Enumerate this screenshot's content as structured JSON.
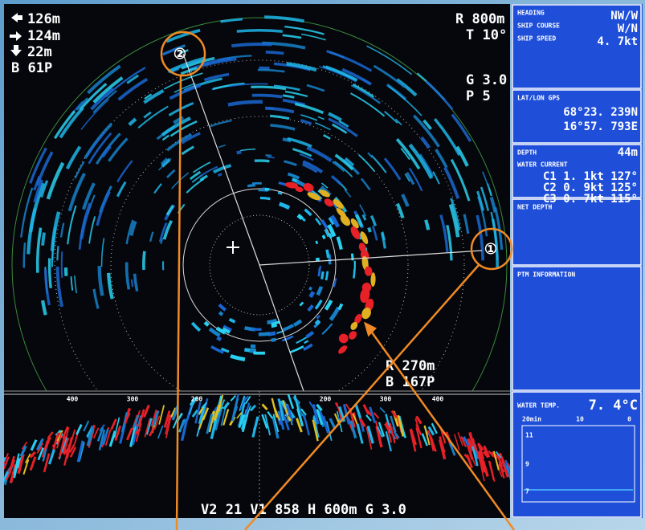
{
  "overlay": {
    "depth": "126m",
    "horizontal": "124m",
    "fish_depth": "22m",
    "bearing": "B  61P"
  },
  "settings": {
    "range": "R  800m",
    "tilt": "T  10°",
    "gain": "G  3.0",
    "pulse": "P  5"
  },
  "target": {
    "range": "R  270m",
    "bearing": "B  167P"
  },
  "markers": [
    "①",
    "②"
  ],
  "strip_scale": [
    "400",
    "300",
    "200",
    "200",
    "300",
    "400"
  ],
  "bottom_bar": "V2  21  V1  858  H  600m  G  3.0",
  "panel": {
    "heading_label": "HEADING",
    "heading": "NW/W",
    "course_label": "SHIP COURSE",
    "course": "W/N",
    "speed_label": "SHIP SPEED",
    "speed": "4. 7kt",
    "position_label": "LAT/LON GPS",
    "lat": "68°23. 239N",
    "lon": "16°57. 793E",
    "depth_label": "DEPTH",
    "depth": "44m",
    "current_label": "WATER CURRENT",
    "currents": [
      "C1  1. 1kt  127°",
      "C2  0. 9kt  125°",
      "C3  0. 7kt  115°"
    ],
    "net_label": "NET DEPTH",
    "ptm_label": "PTM INFORMATION",
    "temp_label": "WATER TEMP.",
    "temp": "7. 4°C",
    "graph_x": [
      "20min",
      "10",
      "0"
    ],
    "graph_y": [
      "11",
      "9",
      "7"
    ]
  }
}
